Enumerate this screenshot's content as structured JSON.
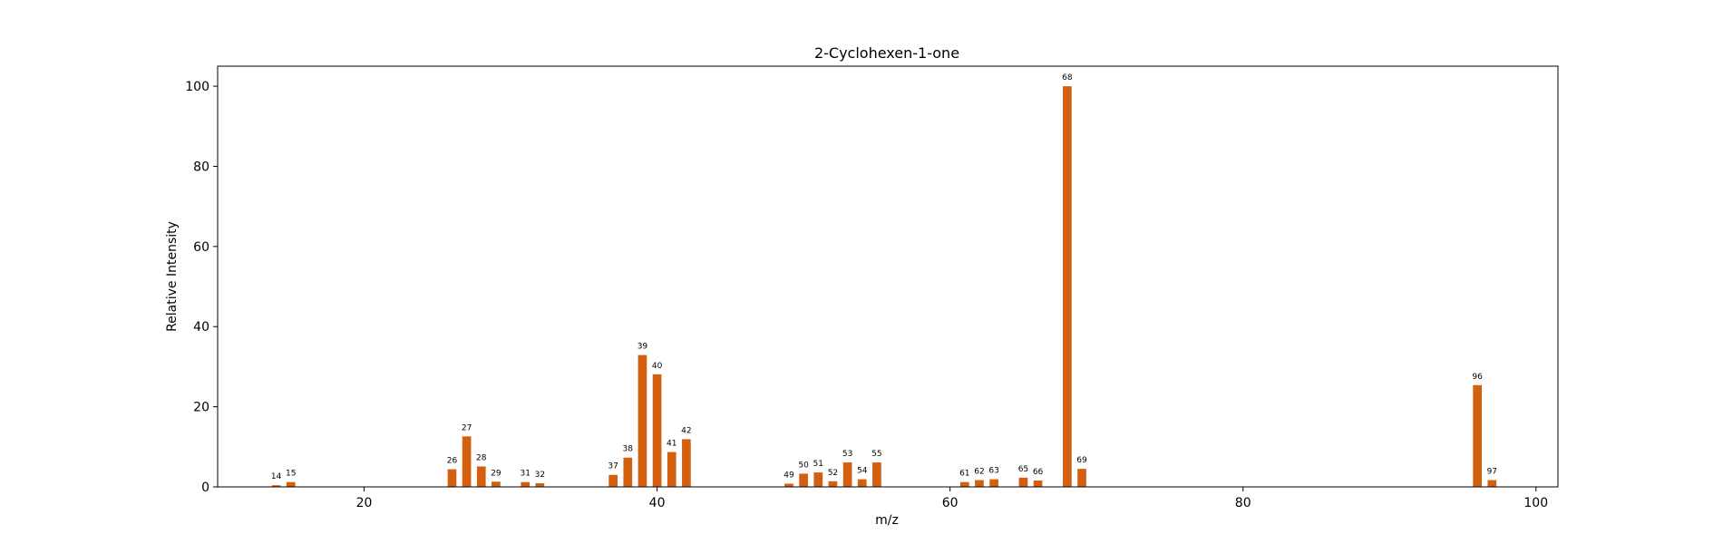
{
  "chart_data": {
    "type": "bar",
    "title": "2-Cyclohexen-1-one",
    "xlabel": "m/z",
    "ylabel": "Relative Intensity",
    "xlim": [
      10,
      101.5
    ],
    "ylim": [
      0,
      105
    ],
    "xticks": [
      20,
      40,
      60,
      80,
      100
    ],
    "yticks": [
      0,
      20,
      40,
      60,
      80,
      100
    ],
    "bar_color": "#d2600f",
    "grid": false,
    "points": [
      {
        "x": 14,
        "y": 0.4,
        "label": "14"
      },
      {
        "x": 15,
        "y": 1.2,
        "label": "15"
      },
      {
        "x": 26,
        "y": 4.4,
        "label": "26"
      },
      {
        "x": 27,
        "y": 12.6,
        "label": "27"
      },
      {
        "x": 28,
        "y": 5.1,
        "label": "28"
      },
      {
        "x": 29,
        "y": 1.3,
        "label": "29"
      },
      {
        "x": 31,
        "y": 1.2,
        "label": "31"
      },
      {
        "x": 32,
        "y": 0.9,
        "label": "32"
      },
      {
        "x": 37,
        "y": 3.0,
        "label": "37"
      },
      {
        "x": 38,
        "y": 7.3,
        "label": "38"
      },
      {
        "x": 39,
        "y": 32.9,
        "label": "39"
      },
      {
        "x": 40,
        "y": 28.1,
        "label": "40"
      },
      {
        "x": 41,
        "y": 8.7,
        "label": "41"
      },
      {
        "x": 42,
        "y": 11.9,
        "label": "42"
      },
      {
        "x": 49,
        "y": 0.8,
        "label": "49"
      },
      {
        "x": 50,
        "y": 3.3,
        "label": "50"
      },
      {
        "x": 51,
        "y": 3.6,
        "label": "51"
      },
      {
        "x": 52,
        "y": 1.4,
        "label": "52"
      },
      {
        "x": 53,
        "y": 6.1,
        "label": "53"
      },
      {
        "x": 54,
        "y": 1.9,
        "label": "54"
      },
      {
        "x": 55,
        "y": 6.1,
        "label": "55"
      },
      {
        "x": 61,
        "y": 1.2,
        "label": "61"
      },
      {
        "x": 62,
        "y": 1.7,
        "label": "62"
      },
      {
        "x": 63,
        "y": 1.9,
        "label": "63"
      },
      {
        "x": 65,
        "y": 2.3,
        "label": "65"
      },
      {
        "x": 66,
        "y": 1.6,
        "label": "66"
      },
      {
        "x": 68,
        "y": 100,
        "label": "68"
      },
      {
        "x": 69,
        "y": 4.5,
        "label": "69"
      },
      {
        "x": 96,
        "y": 25.4,
        "label": "96"
      },
      {
        "x": 97,
        "y": 1.7,
        "label": "97"
      }
    ]
  }
}
